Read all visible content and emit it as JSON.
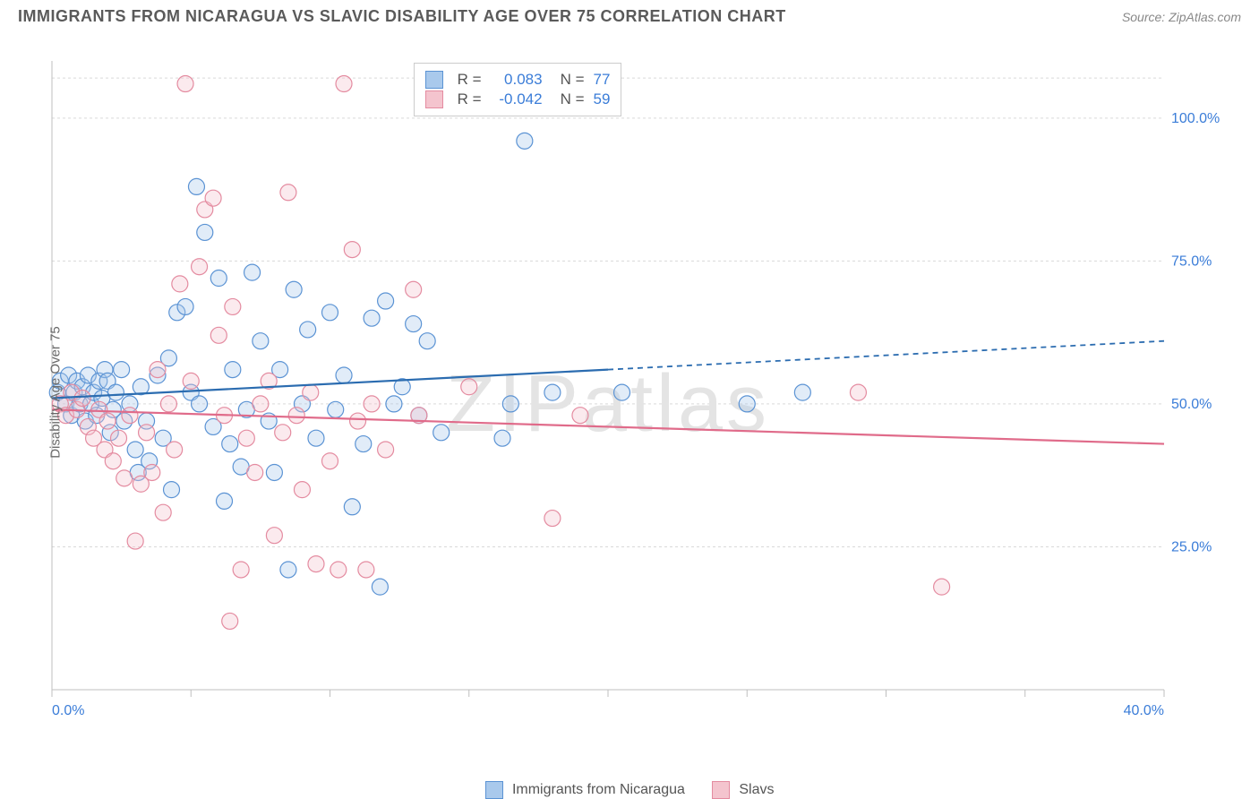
{
  "title": "IMMIGRANTS FROM NICARAGUA VS SLAVIC DISABILITY AGE OVER 75 CORRELATION CHART",
  "source_label": "Source:",
  "source_name": "ZipAtlas.com",
  "y_axis_label": "Disability Age Over 75",
  "watermark": "ZIPatlas",
  "chart": {
    "type": "scatter",
    "xlim": [
      0,
      40
    ],
    "ylim": [
      0,
      110
    ],
    "x_tick_step": 5,
    "x_tick_labels": {
      "0": "0.0%",
      "40": "40.0%"
    },
    "y_ticks": [
      25,
      50,
      75,
      100
    ],
    "y_tick_labels": {
      "25": "25.0%",
      "50": "50.0%",
      "75": "75.0%",
      "100": "100.0%"
    },
    "grid_color": "#d9d9d9",
    "border_color": "#bfbfbf",
    "background_color": "#ffffff",
    "marker_radius": 9,
    "marker_fill_opacity": 0.35,
    "marker_stroke_width": 1.2,
    "series": [
      {
        "name": "Immigrants from Nicaragua",
        "color_fill": "#a9c9ec",
        "color_stroke": "#5b93d4",
        "trend_color": "#2b6cb0",
        "trend_dash_after_x": 20,
        "R": "0.083",
        "N": "77",
        "trend": {
          "y_at_x0": 51,
          "y_at_x40": 61
        },
        "points": [
          [
            0.2,
            52
          ],
          [
            0.3,
            54
          ],
          [
            0.5,
            50
          ],
          [
            0.6,
            55
          ],
          [
            0.7,
            48
          ],
          [
            0.8,
            52
          ],
          [
            0.9,
            54
          ],
          [
            1.0,
            50
          ],
          [
            1.1,
            53
          ],
          [
            1.2,
            47
          ],
          [
            1.3,
            55
          ],
          [
            1.4,
            50
          ],
          [
            1.5,
            52
          ],
          [
            1.6,
            48
          ],
          [
            1.7,
            54
          ],
          [
            1.8,
            51
          ],
          [
            1.9,
            56
          ],
          [
            2.0,
            54
          ],
          [
            2.1,
            45
          ],
          [
            2.2,
            49
          ],
          [
            2.3,
            52
          ],
          [
            2.5,
            56
          ],
          [
            2.6,
            47
          ],
          [
            2.8,
            50
          ],
          [
            3.0,
            42
          ],
          [
            3.1,
            38
          ],
          [
            3.2,
            53
          ],
          [
            3.4,
            47
          ],
          [
            3.5,
            40
          ],
          [
            3.8,
            55
          ],
          [
            4.0,
            44
          ],
          [
            4.2,
            58
          ],
          [
            4.3,
            35
          ],
          [
            4.5,
            66
          ],
          [
            4.8,
            67
          ],
          [
            5.0,
            52
          ],
          [
            5.2,
            88
          ],
          [
            5.3,
            50
          ],
          [
            5.5,
            80
          ],
          [
            5.8,
            46
          ],
          [
            6.0,
            72
          ],
          [
            6.2,
            33
          ],
          [
            6.4,
            43
          ],
          [
            6.5,
            56
          ],
          [
            6.8,
            39
          ],
          [
            7.0,
            49
          ],
          [
            7.2,
            73
          ],
          [
            7.5,
            61
          ],
          [
            7.8,
            47
          ],
          [
            8.0,
            38
          ],
          [
            8.2,
            56
          ],
          [
            8.5,
            21
          ],
          [
            8.7,
            70
          ],
          [
            9.0,
            50
          ],
          [
            9.2,
            63
          ],
          [
            9.5,
            44
          ],
          [
            10.0,
            66
          ],
          [
            10.2,
            49
          ],
          [
            10.5,
            55
          ],
          [
            10.8,
            32
          ],
          [
            11.2,
            43
          ],
          [
            11.5,
            65
          ],
          [
            11.8,
            18
          ],
          [
            12.0,
            68
          ],
          [
            12.3,
            50
          ],
          [
            12.6,
            53
          ],
          [
            13.0,
            64
          ],
          [
            13.2,
            48
          ],
          [
            13.5,
            61
          ],
          [
            14.0,
            45
          ],
          [
            16.2,
            44
          ],
          [
            16.5,
            50
          ],
          [
            17.0,
            96
          ],
          [
            18.0,
            52
          ],
          [
            20.5,
            52
          ],
          [
            25.0,
            50
          ],
          [
            27.0,
            52
          ]
        ]
      },
      {
        "name": "Slavs",
        "color_fill": "#f4c4ce",
        "color_stroke": "#e48ba0",
        "trend_color": "#e06b8a",
        "trend_dash_after_x": 40,
        "R": "-0.042",
        "N": "59",
        "trend": {
          "y_at_x0": 49,
          "y_at_x40": 43
        },
        "points": [
          [
            0.3,
            50
          ],
          [
            0.5,
            48
          ],
          [
            0.7,
            52
          ],
          [
            0.9,
            49
          ],
          [
            1.1,
            51
          ],
          [
            1.3,
            46
          ],
          [
            1.5,
            44
          ],
          [
            1.7,
            49
          ],
          [
            1.9,
            42
          ],
          [
            2.0,
            47
          ],
          [
            2.2,
            40
          ],
          [
            2.4,
            44
          ],
          [
            2.6,
            37
          ],
          [
            2.8,
            48
          ],
          [
            3.0,
            26
          ],
          [
            3.2,
            36
          ],
          [
            3.4,
            45
          ],
          [
            3.6,
            38
          ],
          [
            3.8,
            56
          ],
          [
            4.0,
            31
          ],
          [
            4.2,
            50
          ],
          [
            4.4,
            42
          ],
          [
            4.6,
            71
          ],
          [
            4.8,
            106
          ],
          [
            5.0,
            54
          ],
          [
            5.3,
            74
          ],
          [
            5.5,
            84
          ],
          [
            5.8,
            86
          ],
          [
            6.0,
            62
          ],
          [
            6.2,
            48
          ],
          [
            6.4,
            12
          ],
          [
            6.5,
            67
          ],
          [
            6.8,
            21
          ],
          [
            7.0,
            44
          ],
          [
            7.3,
            38
          ],
          [
            7.5,
            50
          ],
          [
            7.8,
            54
          ],
          [
            8.0,
            27
          ],
          [
            8.3,
            45
          ],
          [
            8.5,
            87
          ],
          [
            8.8,
            48
          ],
          [
            9.0,
            35
          ],
          [
            9.3,
            52
          ],
          [
            9.5,
            22
          ],
          [
            10.0,
            40
          ],
          [
            10.3,
            21
          ],
          [
            10.5,
            106
          ],
          [
            10.8,
            77
          ],
          [
            11.0,
            47
          ],
          [
            11.3,
            21
          ],
          [
            11.5,
            50
          ],
          [
            12.0,
            42
          ],
          [
            13.0,
            70
          ],
          [
            13.2,
            48
          ],
          [
            15.0,
            53
          ],
          [
            18.0,
            30
          ],
          [
            19.0,
            48
          ],
          [
            29.0,
            52
          ],
          [
            32.0,
            18
          ]
        ]
      }
    ]
  },
  "bottom_legend": [
    {
      "label": "Immigrants from Nicaragua",
      "fill": "#a9c9ec",
      "stroke": "#5b93d4"
    },
    {
      "label": "Slavs",
      "fill": "#f4c4ce",
      "stroke": "#e48ba0"
    }
  ]
}
